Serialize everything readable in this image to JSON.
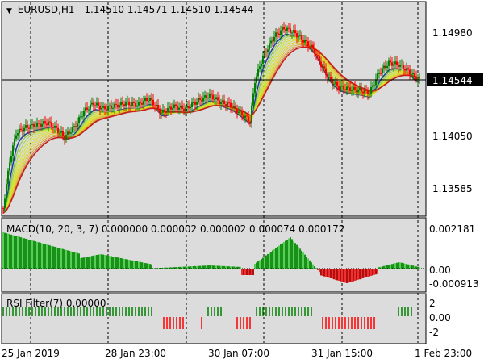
{
  "main": {
    "symbol": "EURUSD,H1",
    "ohlc": "1.14510 1.14571 1.14510 1.14544",
    "price_labels": [
      "1.14980",
      "1.14050",
      "1.13585"
    ],
    "current_price": "1.14544"
  },
  "macd": {
    "label": "MACD(10, 20, 3, 7) 0.000000 0.000002 0.000002 0.000074 0.000172",
    "scale_labels": [
      "0.002181",
      "0.00",
      "-0.000913"
    ]
  },
  "rsi": {
    "label": "RSI Filter(7) 0.00000",
    "scale_labels": [
      "2",
      "0.00",
      "-2"
    ]
  },
  "time_axis": [
    "25 Jan 2019",
    "28 Jan 23:00",
    "30 Jan 07:00",
    "31 Jan 15:00",
    "1 Feb 23:00"
  ],
  "colors": {
    "background": "#ffffff",
    "chart_bg": "#dcdcdc",
    "bull": "#008000",
    "bear": "#ff0000",
    "ribbon": "#c8e632",
    "blue_ma": "#000080",
    "red_ma": "#c00000",
    "macd_up": "#32cd32",
    "macd_dn": "#dc143c"
  }
}
